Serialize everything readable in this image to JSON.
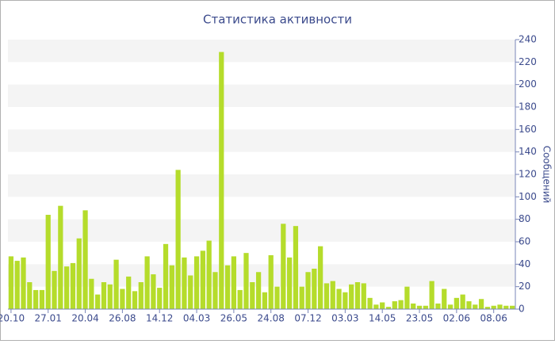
{
  "chart_data": {
    "type": "bar",
    "title": "Статистика активности",
    "y_label": "Сообщений",
    "categories": [
      "20.10",
      null,
      null,
      null,
      null,
      null,
      "27.01",
      null,
      null,
      null,
      null,
      null,
      "20.04",
      null,
      null,
      null,
      null,
      null,
      "26.08",
      null,
      null,
      null,
      null,
      null,
      "14.12",
      null,
      null,
      null,
      null,
      null,
      "04.03",
      null,
      null,
      null,
      null,
      null,
      "26.05",
      null,
      null,
      null,
      null,
      null,
      "24.08",
      null,
      null,
      null,
      null,
      null,
      "07.12",
      null,
      null,
      null,
      null,
      null,
      "03.03",
      null,
      null,
      null,
      null,
      null,
      "14.05",
      null,
      null,
      null,
      null,
      null,
      "23.05",
      null,
      null,
      null,
      null,
      null,
      "02.06",
      null,
      null,
      null,
      null,
      null,
      "08.06",
      null,
      null,
      null
    ],
    "values": [
      47,
      43,
      46,
      24,
      17,
      17,
      84,
      34,
      92,
      38,
      41,
      63,
      88,
      27,
      13,
      24,
      22,
      44,
      18,
      29,
      16,
      24,
      47,
      31,
      19,
      58,
      39,
      124,
      46,
      30,
      47,
      52,
      61,
      33,
      229,
      39,
      47,
      17,
      50,
      24,
      33,
      15,
      48,
      20,
      76,
      46,
      74,
      20,
      33,
      36,
      56,
      23,
      25,
      18,
      15,
      22,
      24,
      23,
      10,
      4,
      6,
      2,
      7,
      8,
      20,
      5,
      3,
      3,
      25,
      5,
      18,
      4,
      10,
      13,
      7,
      4,
      9,
      2,
      3,
      4,
      3,
      3
    ],
    "color": "#b5dc2b",
    "ylim": [
      0,
      240
    ],
    "yticks": [
      0,
      20,
      40,
      60,
      80,
      100,
      120,
      140,
      160,
      180,
      200,
      220,
      240
    ],
    "grid": true
  }
}
